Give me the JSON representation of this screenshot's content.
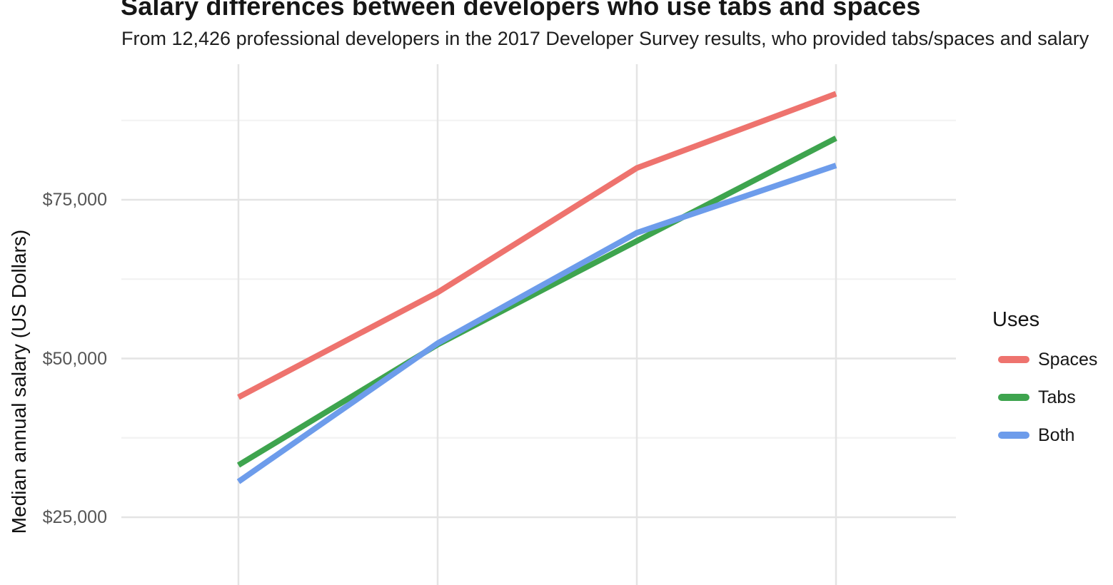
{
  "chart_data": {
    "type": "line",
    "title": "Salary differences between developers who use tabs and spaces",
    "subtitle": "From 12,426 professional developers in the 2017 Developer Survey results, who provided tabs/spaces and salary",
    "ylabel": "Median annual salary (US Dollars)",
    "y_tick_labels": [
      "$75,000",
      "$50,000",
      "$25,000"
    ],
    "y_tick_values": [
      75000,
      50000,
      25000
    ],
    "x_positions": [
      1,
      2,
      3,
      4
    ],
    "x_tick_labels_visible": false,
    "grid": true,
    "legend_title": "Uses",
    "legend_position": "right",
    "series": [
      {
        "name": "Spaces",
        "color": "#ee736e",
        "values": [
          43900,
          60400,
          80000,
          91700
        ]
      },
      {
        "name": "Tabs",
        "color": "#3ea44e",
        "values": [
          33200,
          52200,
          68500,
          84700
        ]
      },
      {
        "name": "Both",
        "color": "#6d9ceb",
        "values": [
          30600,
          52400,
          69800,
          80400
        ]
      }
    ],
    "colors": {
      "grid_major": "#e4e4e4",
      "grid_minor": "#f2f2f2",
      "tick_text": "#565656",
      "text": "#161616"
    }
  }
}
